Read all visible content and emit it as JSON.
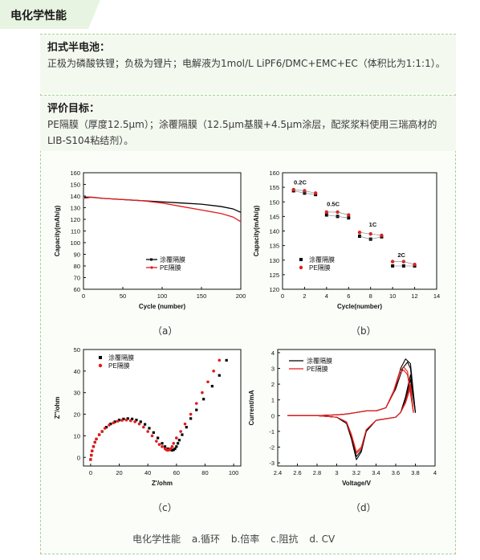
{
  "section_title": "电化学性能",
  "cell_info": {
    "heading": "扣式半电池：",
    "text": "正极为磷酸铁锂；负极为锂片；电解液为1mol/L LiPF6/DMC+EMC+EC（体积比为1:1:1）。"
  },
  "goal": {
    "heading": "评价目标：",
    "text": "PE隔膜（厚度12.5μm）；涂覆隔膜（12.5μm基膜+4.5μm涂层，配浆浆料使用三瑞高材的LIB-S104粘结剂）。"
  },
  "captions": {
    "a": "（a）",
    "b": "（b）",
    "c": "（c）",
    "d": "（d）"
  },
  "bottom_caption": {
    "title": "电化学性能",
    "items": [
      "a.循环",
      "b.倍率",
      "c.阻抗",
      "d. CV"
    ]
  },
  "colors": {
    "coated": "#000000",
    "pe": "#e31a1a",
    "accent_green": "#a6d38f"
  },
  "chart_data": [
    {
      "id": "a",
      "type": "line",
      "xlabel": "Cycle (number)",
      "ylabel": "Capacity(mAh/g)",
      "xlim": [
        0,
        200
      ],
      "ylim": [
        60,
        160
      ],
      "xticks": [
        0,
        50,
        100,
        150,
        200
      ],
      "yticks": [
        60,
        70,
        80,
        90,
        100,
        110,
        120,
        130,
        140,
        150,
        160
      ],
      "legend_position": "center-right",
      "series": [
        {
          "name": "涂覆隔膜",
          "x": [
            1,
            10,
            25,
            50,
            75,
            100,
            125,
            150,
            175,
            190,
            200
          ],
          "y": [
            139,
            139,
            138,
            137,
            136,
            135,
            134,
            133,
            131,
            129,
            126
          ]
        },
        {
          "name": "PE隔膜",
          "x": [
            1,
            10,
            25,
            50,
            75,
            100,
            125,
            150,
            175,
            190,
            200
          ],
          "y": [
            138,
            139,
            138,
            137,
            136,
            134,
            131,
            128,
            125,
            122,
            118
          ]
        }
      ]
    },
    {
      "id": "b",
      "type": "scatter",
      "xlabel": "Cycle(number)",
      "ylabel": "Capacity(mAh/g)",
      "xlim": [
        0,
        14
      ],
      "ylim": [
        120,
        160
      ],
      "xticks": [
        0,
        2,
        4,
        6,
        8,
        10,
        12,
        14
      ],
      "yticks": [
        120,
        125,
        130,
        135,
        140,
        145,
        150,
        155,
        160
      ],
      "legend_position": "bottom-left",
      "annotations": [
        {
          "text": "0.2C",
          "x": 1.6,
          "y": 156
        },
        {
          "text": "0.5C",
          "x": 4.6,
          "y": 148.5
        },
        {
          "text": "1C",
          "x": 8.2,
          "y": 141.5
        },
        {
          "text": "2C",
          "x": 10.8,
          "y": 131
        }
      ],
      "series": [
        {
          "name": "涂覆隔膜",
          "x": [
            1,
            2,
            3,
            4,
            5,
            6,
            7,
            8,
            9,
            10,
            11,
            12
          ],
          "y": [
            153.8,
            153,
            152.5,
            145.5,
            145,
            144.5,
            138.2,
            137.2,
            138,
            128,
            128,
            128
          ]
        },
        {
          "name": "PE隔膜",
          "x": [
            1,
            2,
            3,
            4,
            5,
            6,
            7,
            8,
            9,
            10,
            11,
            12
          ],
          "y": [
            154.2,
            153.8,
            153,
            146.5,
            146.5,
            145.5,
            139.5,
            139,
            138.5,
            129.5,
            129.5,
            128.5
          ]
        }
      ]
    },
    {
      "id": "c",
      "type": "scatter",
      "xlabel": "Z'/ohm",
      "ylabel": "Z''/ohm",
      "xlim": [
        -5,
        105
      ],
      "ylim": [
        -4,
        50
      ],
      "xticks": [
        0,
        20,
        40,
        60,
        80,
        100
      ],
      "yticks": [
        0,
        10,
        20,
        30,
        40,
        50
      ],
      "legend_position": "top-left",
      "series": [
        {
          "name": "涂覆隔膜",
          "x": [
            0,
            0.5,
            1,
            2,
            3,
            4,
            6,
            8,
            11,
            14,
            17,
            20,
            23,
            26,
            29,
            32,
            35,
            38,
            41,
            44,
            47,
            50,
            52,
            54,
            56,
            57,
            58,
            59,
            60,
            61,
            62,
            64,
            67,
            70,
            74,
            79,
            85,
            90,
            95
          ],
          "y": [
            -1,
            1,
            3,
            5,
            7,
            8.5,
            10.5,
            12,
            14,
            15.5,
            16.5,
            17.3,
            17.8,
            18,
            17.8,
            17.3,
            16.5,
            15.3,
            13.5,
            11.5,
            9,
            6.5,
            5,
            4,
            3.5,
            3.3,
            3.5,
            4,
            5,
            6.5,
            8,
            10.5,
            14,
            18,
            22,
            27,
            33,
            38,
            45
          ]
        },
        {
          "name": "PE隔膜",
          "x": [
            0,
            0.5,
            1,
            2,
            3,
            4,
            6,
            8,
            10,
            13,
            16,
            19,
            22,
            25,
            28,
            31,
            34,
            37,
            40,
            43,
            46,
            48,
            50,
            52,
            53,
            54,
            55,
            56,
            57,
            58,
            60,
            63,
            66,
            70,
            74,
            78,
            82,
            86,
            90
          ],
          "y": [
            -1,
            1,
            3,
            5,
            7,
            8.5,
            10.5,
            12,
            13.5,
            15,
            16,
            16.8,
            17.2,
            17.3,
            17,
            16.5,
            15.5,
            14,
            12,
            10,
            7.5,
            6,
            5,
            4,
            3.5,
            3.3,
            3.5,
            4,
            5,
            6.5,
            9,
            12,
            15.5,
            20,
            25,
            30,
            35,
            40,
            45
          ]
        }
      ]
    },
    {
      "id": "d",
      "type": "line",
      "xlabel": "Voltage/V",
      "ylabel": "Current/mA",
      "xlim": [
        2.4,
        4.0
      ],
      "ylim": [
        -3.2,
        4.2
      ],
      "xticks": [
        2.4,
        2.6,
        2.8,
        3.0,
        3.2,
        3.4,
        3.6,
        3.8,
        4.0
      ],
      "yticks": [
        -3,
        -2,
        -1,
        0,
        1,
        2,
        3,
        4
      ],
      "legend_position": "top-left",
      "series": [
        {
          "name": "涂覆隔膜",
          "cycles": [
            {
              "x": [
                2.5,
                2.8,
                3.0,
                3.1,
                3.15,
                3.2,
                3.25,
                3.3,
                3.4,
                3.5,
                3.6,
                3.65,
                3.7,
                3.75,
                3.8,
                3.75,
                3.7,
                3.65,
                3.6,
                3.5,
                3.4,
                3.3,
                3.2,
                3.1,
                3.0,
                2.8,
                2.5
              ],
              "y": [
                0,
                0,
                -0.1,
                -0.5,
                -1.5,
                -2.8,
                -2.3,
                -1,
                -0.3,
                -0.2,
                -0.1,
                0.2,
                1.2,
                2.6,
                0.2,
                3.3,
                3.6,
                3.0,
                1.8,
                0.5,
                0.3,
                0.3,
                0.2,
                0.1,
                0.05,
                0,
                0
              ]
            },
            {
              "x": [
                2.5,
                2.8,
                3.0,
                3.1,
                3.15,
                3.2,
                3.25,
                3.3,
                3.4,
                3.5,
                3.6,
                3.65,
                3.7,
                3.75,
                3.8,
                3.75,
                3.72,
                3.67,
                3.6,
                3.5,
                3.4,
                3.3,
                3.2,
                3.1,
                3.0,
                2.8,
                2.5
              ],
              "y": [
                0,
                0,
                -0.1,
                -0.5,
                -1.4,
                -2.6,
                -2.2,
                -1,
                -0.3,
                -0.2,
                -0.1,
                0.2,
                1.0,
                2.3,
                0.2,
                3.0,
                3.4,
                3.0,
                1.7,
                0.5,
                0.3,
                0.3,
                0.2,
                0.1,
                0.05,
                0,
                0
              ]
            }
          ]
        },
        {
          "name": "PE隔膜",
          "cycles": [
            {
              "x": [
                2.5,
                2.8,
                3.0,
                3.1,
                3.15,
                3.2,
                3.25,
                3.3,
                3.4,
                3.5,
                3.6,
                3.65,
                3.7,
                3.75,
                3.78,
                3.72,
                3.68,
                3.64,
                3.58,
                3.5,
                3.4,
                3.3,
                3.2,
                3.1,
                3.0,
                2.8,
                2.5
              ],
              "y": [
                0,
                0,
                -0.1,
                -0.4,
                -1.3,
                -2.4,
                -2.1,
                -0.9,
                -0.3,
                -0.2,
                -0.1,
                0.2,
                0.9,
                2.0,
                0.2,
                2.8,
                3.1,
                2.8,
                1.6,
                0.5,
                0.3,
                0.3,
                0.2,
                0.1,
                0.05,
                0,
                0
              ]
            },
            {
              "x": [
                2.5,
                2.8,
                3.0,
                3.1,
                3.15,
                3.2,
                3.25,
                3.3,
                3.4,
                3.5,
                3.6,
                3.65,
                3.7,
                3.75,
                3.78,
                3.72,
                3.68,
                3.64,
                3.58,
                3.5,
                3.4,
                3.3,
                3.2,
                3.1,
                3.0,
                2.8,
                2.5
              ],
              "y": [
                0,
                0,
                -0.1,
                -0.4,
                -1.2,
                -2.3,
                -2.0,
                -0.9,
                -0.3,
                -0.2,
                -0.1,
                0.2,
                0.8,
                1.8,
                0.2,
                2.6,
                2.9,
                2.7,
                1.5,
                0.5,
                0.3,
                0.3,
                0.2,
                0.1,
                0.05,
                0,
                0
              ]
            }
          ]
        }
      ]
    }
  ]
}
